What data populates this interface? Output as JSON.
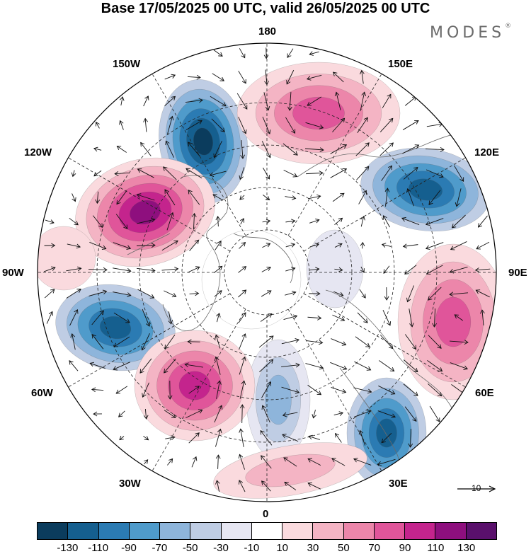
{
  "header": {
    "title": "Base 17/05/2025 00 UTC, valid 26/05/2025 00 UTC",
    "brand": "MODES",
    "brand_mark": "®"
  },
  "map": {
    "projection": "north polar stereographic",
    "meridian_labels": {
      "top": "180",
      "bottom": "0",
      "left": "90W",
      "right": "90E",
      "upper_left_1": "150W",
      "upper_left_2": "120W",
      "upper_right_1": "150E",
      "upper_right_2": "120E",
      "lower_left_1": "60W",
      "lower_left_2": "30W",
      "lower_right_1": "60E",
      "lower_right_2": "30E"
    },
    "reference_vector": {
      "label": "10"
    }
  },
  "legend": {
    "colors": [
      "#0b3c5d",
      "#155f8f",
      "#2b7bb3",
      "#4f9bcb",
      "#8eb5db",
      "#bfcde4",
      "#e6e6f2",
      "#ffffff",
      "#fadade",
      "#f4b4c4",
      "#ec86aa",
      "#e0559a",
      "#c4248d",
      "#8e0f7e",
      "#5a106c"
    ],
    "ticks": [
      "-130",
      "-110",
      "-90",
      "-70",
      "-50",
      "-30",
      "-10",
      "10",
      "30",
      "50",
      "70",
      "90",
      "110",
      "130"
    ]
  }
}
